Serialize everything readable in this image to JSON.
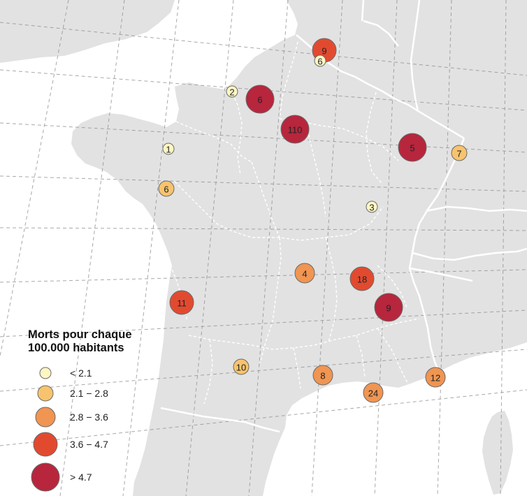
{
  "legend": {
    "title_line1": "Morts pour chaque",
    "title_line2": "100.000 habitants",
    "classes": [
      {
        "label": "< 2.1",
        "color": "#fdf6c3"
      },
      {
        "label": "2.1 − 2.8",
        "color": "#f7c36e"
      },
      {
        "label": "2.8 − 3.6",
        "color": "#f09552"
      },
      {
        "label": "3.6 − 4.7",
        "color": "#e24a30"
      },
      {
        "label": "> 4.7",
        "color": "#b7263c"
      }
    ]
  },
  "colors": {
    "land": "#e2e2e2",
    "sea": "#ffffff",
    "border": "#ffffff",
    "graticule": "#8c8c8c",
    "marker_stroke": "#6a6a6a"
  },
  "markers": [
    {
      "label": "9",
      "class": 3
    },
    {
      "label": "6",
      "class": 0
    },
    {
      "label": "2",
      "class": 0
    },
    {
      "label": "6",
      "class": 4
    },
    {
      "label": "110",
      "class": 4
    },
    {
      "label": "1",
      "class": 0
    },
    {
      "label": "5",
      "class": 4
    },
    {
      "label": "7",
      "class": 1
    },
    {
      "label": "6",
      "class": 1
    },
    {
      "label": "3",
      "class": 0
    },
    {
      "label": "4",
      "class": 2
    },
    {
      "label": "18",
      "class": 3
    },
    {
      "label": "11",
      "class": 3
    },
    {
      "label": "9",
      "class": 4
    },
    {
      "label": "10",
      "class": 1
    },
    {
      "label": "8",
      "class": 2
    },
    {
      "label": "24",
      "class": 2
    },
    {
      "label": "12",
      "class": 2
    }
  ]
}
